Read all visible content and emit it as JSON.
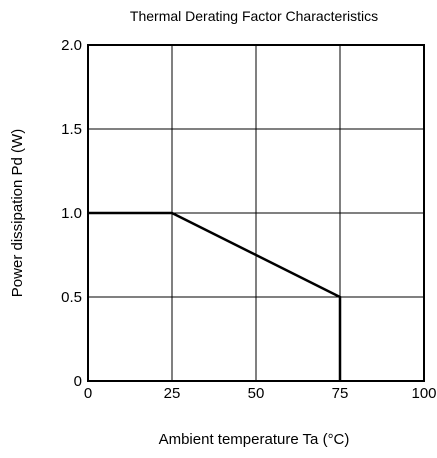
{
  "chart_data": {
    "type": "line",
    "title": "Thermal Derating Factor Characteristics",
    "xlabel": "Ambient temperature  Ta (°C)",
    "ylabel": "Power dissipation  Pd (W)",
    "xlim": [
      0,
      100
    ],
    "ylim": [
      0,
      2.0
    ],
    "x_ticks": [
      "0",
      "25",
      "50",
      "75",
      "100"
    ],
    "y_ticks": [
      "0",
      "0.5",
      "1.0",
      "1.5",
      "2.0"
    ],
    "x_tick_values": [
      0,
      25,
      50,
      75,
      100
    ],
    "y_tick_values": [
      0,
      0.5,
      1.0,
      1.5,
      2.0
    ],
    "grid": true,
    "series": [
      {
        "x": [
          0,
          25,
          75,
          75
        ],
        "y": [
          1.0,
          1.0,
          0.5,
          0
        ]
      }
    ]
  }
}
